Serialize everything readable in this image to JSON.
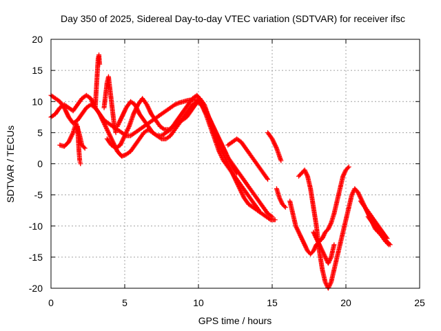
{
  "chart_data": {
    "type": "scatter",
    "title": "Day 350 of 2025, Sidereal Day-to-day VTEC variation (SDTVAR) for receiver ifsc",
    "xlabel": "GPS time / hours",
    "ylabel": "SDTVAR / TECUs",
    "xlim": [
      0,
      25
    ],
    "ylim": [
      -20,
      20
    ],
    "x_ticks": [
      "0",
      "5",
      "10",
      "15",
      "20",
      "25"
    ],
    "y_ticks": [
      "-20",
      "-15",
      "-10",
      "-5",
      "0",
      "5",
      "10",
      "15",
      "20"
    ],
    "grid": true,
    "marker": "+",
    "color": "#ff0000",
    "series": [
      {
        "x": [
          0.0,
          0.3,
          0.6,
          0.9,
          1.2,
          1.5,
          1.8,
          2.1,
          2.4,
          2.7,
          3.0,
          3.3,
          3.6,
          3.9,
          4.2,
          4.5,
          4.8,
          5.1,
          5.4,
          5.7,
          6.0,
          6.3,
          6.6,
          6.9,
          7.2,
          7.5,
          7.8,
          8.1,
          8.4,
          8.7,
          9.0,
          9.3,
          9.6,
          9.9,
          10.2,
          10.5,
          10.8,
          11.1,
          11.4,
          11.7,
          12.0,
          12.3,
          12.6,
          12.9,
          13.2,
          13.5,
          13.8,
          14.1,
          14.4,
          14.7,
          15.0
        ],
        "y": [
          7.5,
          8.0,
          9.0,
          9.5,
          9.0,
          8.5,
          9.5,
          10.5,
          11.0,
          10.5,
          9.0,
          8.0,
          7.0,
          6.5,
          6.0,
          5.5,
          5.0,
          4.5,
          4.5,
          5.0,
          5.5,
          6.0,
          6.5,
          7.0,
          7.5,
          8.0,
          8.5,
          9.0,
          9.5,
          9.8,
          10.0,
          10.2,
          10.3,
          10.2,
          9.5,
          8.5,
          7.0,
          5.5,
          4.0,
          2.5,
          1.0,
          0.0,
          -1.0,
          -2.0,
          -3.0,
          -4.0,
          -5.0,
          -6.0,
          -7.0,
          -8.0,
          -8.5
        ]
      },
      {
        "x": [
          0.0,
          0.3,
          0.6,
          0.9,
          1.2,
          1.5,
          1.8,
          2.1,
          2.4,
          2.7,
          3.0,
          3.3,
          3.6,
          3.9,
          4.2,
          4.5,
          4.8,
          5.1,
          5.4,
          5.7,
          6.0,
          6.3,
          6.6,
          6.9,
          7.2,
          7.5,
          7.8,
          8.1,
          8.4,
          8.7,
          9.0,
          9.3,
          9.6,
          9.9,
          10.2,
          10.5,
          10.8,
          11.1,
          11.4,
          11.7,
          12.0,
          12.3,
          12.6,
          12.9,
          13.2,
          13.5,
          13.8,
          14.1
        ],
        "y": [
          11.0,
          10.5,
          10.0,
          9.0,
          7.5,
          6.5,
          7.0,
          8.0,
          9.0,
          9.5,
          9.0,
          8.0,
          6.5,
          5.0,
          3.5,
          2.0,
          1.2,
          1.5,
          2.0,
          3.0,
          4.0,
          5.0,
          5.5,
          5.0,
          4.5,
          4.0,
          4.0,
          4.5,
          5.5,
          6.5,
          7.5,
          8.5,
          9.5,
          10.0,
          9.5,
          8.0,
          6.0,
          4.0,
          2.0,
          0.5,
          -0.5,
          -1.5,
          -2.5,
          -3.5,
          -4.5,
          -5.5,
          -6.5,
          -7.5
        ]
      },
      {
        "x": [
          0.6,
          0.9,
          1.2,
          1.5,
          1.7,
          1.9,
          2.1,
          2.3
        ],
        "y": [
          3.0,
          2.8,
          3.5,
          5.0,
          6.5,
          5.0,
          3.0,
          2.5
        ]
      },
      {
        "x": [
          1.8,
          1.85,
          1.9,
          1.95,
          2.0
        ],
        "y": [
          6.0,
          4.0,
          2.0,
          0.5,
          0.0
        ]
      },
      {
        "x": [
          3.0,
          3.05,
          3.1,
          3.15,
          3.2,
          3.25,
          3.3
        ],
        "y": [
          9.0,
          11.0,
          13.0,
          15.0,
          17.0,
          17.5,
          16.0
        ]
      },
      {
        "x": [
          3.6,
          3.7,
          3.8,
          3.9,
          4.0,
          4.1,
          4.2,
          4.3,
          4.4
        ],
        "y": [
          9.0,
          11.0,
          13.0,
          14.0,
          12.0,
          10.0,
          8.0,
          6.0,
          5.0
        ]
      },
      {
        "x": [
          3.8,
          4.1,
          4.4,
          4.7,
          5.0,
          5.3,
          5.6,
          5.9,
          6.2,
          6.5,
          6.8,
          7.1,
          7.4,
          7.7,
          8.0,
          8.3,
          8.6,
          8.9,
          9.2,
          9.5,
          9.8,
          10.1,
          10.4,
          10.7,
          11.0,
          11.3,
          11.6,
          11.9,
          12.2,
          12.5,
          12.8,
          13.1,
          13.4,
          13.7,
          14.0,
          14.3,
          14.6,
          14.9,
          15.2
        ],
        "y": [
          4.0,
          3.0,
          2.5,
          3.0,
          4.5,
          6.0,
          8.0,
          9.5,
          10.5,
          9.5,
          8.0,
          7.0,
          6.0,
          5.5,
          5.5,
          6.0,
          6.5,
          7.0,
          7.5,
          8.5,
          9.5,
          10.5,
          9.5,
          7.5,
          5.5,
          3.5,
          2.0,
          0.5,
          -1.0,
          -2.5,
          -4.0,
          -5.5,
          -6.5,
          -7.0,
          -7.5,
          -8.0,
          -8.5,
          -9.0,
          -9.0
        ]
      },
      {
        "x": [
          4.5,
          4.8,
          5.1,
          5.4,
          5.7,
          6.0,
          6.3,
          6.6,
          6.9,
          7.2,
          7.5,
          7.8,
          8.1,
          8.4,
          8.7,
          9.0,
          9.3,
          9.6,
          9.9,
          10.2,
          10.5,
          10.8,
          11.1,
          11.4,
          11.7,
          12.0,
          12.3,
          12.6
        ],
        "y": [
          6.0,
          7.5,
          9.0,
          10.0,
          9.5,
          8.0,
          7.0,
          6.0,
          5.0,
          4.5,
          4.5,
          5.0,
          5.5,
          6.5,
          7.5,
          8.5,
          9.5,
          10.5,
          11.0,
          10.0,
          8.5,
          7.0,
          5.5,
          4.0,
          2.5,
          1.0,
          -0.5,
          -1.5
        ]
      },
      {
        "x": [
          12.0,
          12.3,
          12.6,
          12.9,
          13.2,
          13.5,
          13.8,
          14.1,
          14.4,
          14.7
        ],
        "y": [
          3.0,
          3.5,
          4.0,
          3.5,
          2.5,
          1.5,
          0.5,
          -0.5,
          -1.5,
          -2.5
        ]
      },
      {
        "x": [
          14.7,
          15.0,
          15.3,
          15.6
        ],
        "y": [
          5.0,
          4.0,
          2.5,
          0.5
        ]
      },
      {
        "x": [
          15.3,
          15.5,
          15.7,
          15.9
        ],
        "y": [
          -4.0,
          -5.5,
          -6.5,
          -7.0
        ]
      },
      {
        "x": [
          16.2,
          16.4,
          16.6,
          16.8,
          17.0,
          17.2,
          17.4,
          17.6,
          17.8,
          18.0,
          18.2,
          18.4,
          18.6,
          18.8,
          19.0,
          19.2,
          19.4,
          19.6,
          19.8,
          20.0,
          20.2
        ],
        "y": [
          -6.0,
          -8.0,
          -10.0,
          -11.0,
          -12.0,
          -13.0,
          -14.0,
          -14.5,
          -14.0,
          -13.0,
          -12.5,
          -12.0,
          -11.0,
          -10.5,
          -9.5,
          -8.0,
          -6.0,
          -4.0,
          -2.0,
          -1.0,
          -0.5
        ]
      },
      {
        "x": [
          16.8,
          17.0,
          17.2,
          17.4,
          17.6,
          17.8,
          18.0,
          18.2,
          18.4,
          18.6,
          18.8,
          19.0,
          19.2,
          19.4,
          19.6,
          19.8,
          20.0,
          20.2,
          20.4,
          20.6,
          20.8,
          21.0,
          21.2,
          21.4,
          21.6,
          21.8,
          22.0,
          22.2,
          22.4,
          22.6,
          22.8,
          23.0
        ],
        "y": [
          -2.0,
          -1.5,
          -1.0,
          -2.0,
          -4.0,
          -7.0,
          -10.0,
          -14.0,
          -17.0,
          -19.0,
          -20.0,
          -19.0,
          -17.0,
          -15.0,
          -13.0,
          -11.0,
          -9.0,
          -7.0,
          -5.0,
          -4.0,
          -4.5,
          -5.5,
          -6.5,
          -7.5,
          -8.5,
          -9.5,
          -10.5,
          -11.0,
          -11.5,
          -12.0,
          -12.5,
          -13.0
        ]
      },
      {
        "x": [
          17.8,
          18.0,
          18.2,
          18.4,
          18.6,
          18.8,
          19.0,
          19.2
        ],
        "y": [
          -11.0,
          -12.0,
          -13.0,
          -14.0,
          -15.0,
          -16.0,
          -15.0,
          -13.0
        ]
      },
      {
        "x": [
          21.0,
          21.3,
          21.6,
          21.9,
          22.2,
          22.5,
          22.8
        ],
        "y": [
          -6.0,
          -7.0,
          -8.0,
          -9.0,
          -10.0,
          -11.0,
          -12.0
        ]
      },
      {
        "x": [
          21.5,
          21.8,
          22.1,
          22.4,
          22.7,
          22.9
        ],
        "y": [
          -8.5,
          -9.5,
          -10.5,
          -11.5,
          -12.5,
          -13.0
        ]
      }
    ]
  }
}
